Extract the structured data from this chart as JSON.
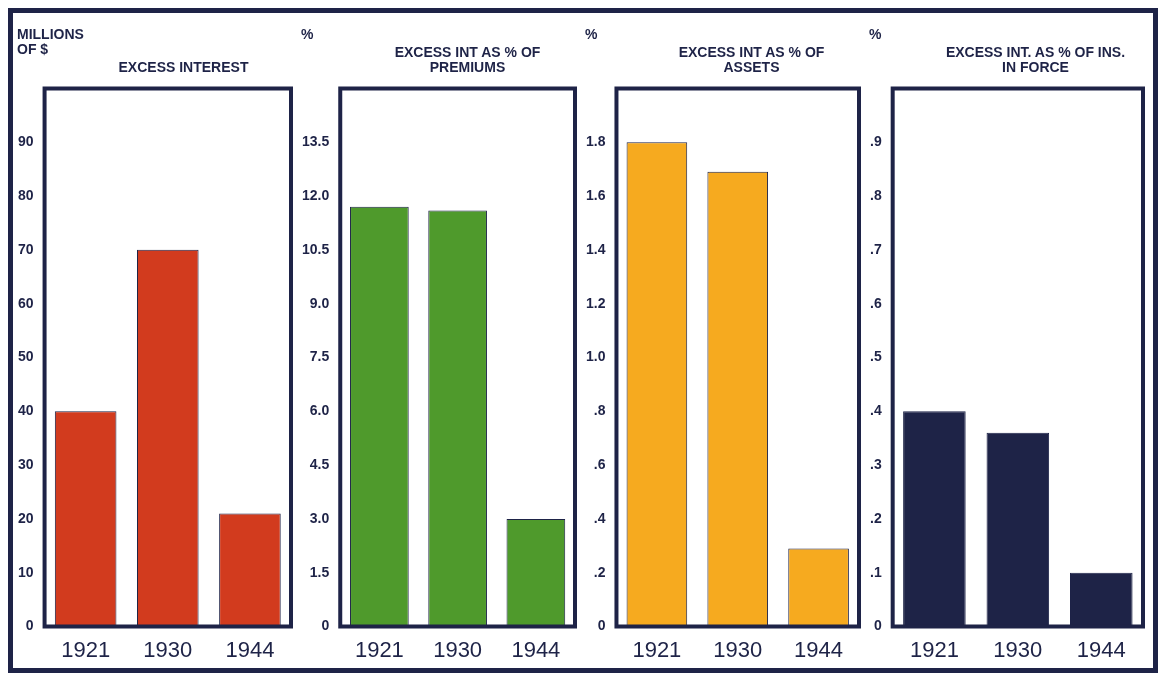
{
  "chart_data": [
    {
      "type": "bar",
      "title": "EXCESS INTEREST",
      "ylabel": "MILLIONS OF $",
      "categories": [
        "1921",
        "1930",
        "1944"
      ],
      "values": [
        40,
        70,
        21
      ],
      "color": "#d23b1e",
      "ylim": [
        0,
        100
      ],
      "yticks": [
        0,
        10,
        20,
        30,
        40,
        50,
        60,
        70,
        80,
        90
      ]
    },
    {
      "type": "bar",
      "title": "EXCESS INT AS % OF PREMIUMS",
      "ylabel": "%",
      "categories": [
        "1921",
        "1930",
        "1944"
      ],
      "values": [
        11.7,
        11.6,
        3.0
      ],
      "color": "#4f9a2c",
      "ylim": [
        0,
        15
      ],
      "yticks": [
        0,
        1.5,
        {
          "value": 3,
          "label": "3.0"
        },
        4.5,
        {
          "value": 6,
          "label": "6.0"
        },
        7.5,
        {
          "value": 9,
          "label": "9.0"
        },
        10.5,
        {
          "value": 12,
          "label": "12.0"
        },
        13.5
      ]
    },
    {
      "type": "bar",
      "title": "EXCESS INT AS % OF ASSETS",
      "ylabel": "%",
      "categories": [
        "1921",
        "1930",
        "1944"
      ],
      "values": [
        1.8,
        1.69,
        0.29
      ],
      "color": "#f6aa1f",
      "ylim": [
        0,
        2.0
      ],
      "yticks": [
        0,
        {
          "value": 0.2,
          "label": ".2"
        },
        {
          "value": 0.4,
          "label": ".4"
        },
        {
          "value": 0.6,
          "label": ".6"
        },
        {
          "value": 0.8,
          "label": ".8"
        },
        {
          "value": 1,
          "label": "1.0"
        },
        1.2,
        1.4,
        1.6,
        1.8
      ]
    },
    {
      "type": "bar",
      "title": "EXCESS INT. AS % OF INS. IN FORCE",
      "ylabel": "%",
      "categories": [
        "1921",
        "1930",
        "1944"
      ],
      "values": [
        0.4,
        0.36,
        0.1
      ],
      "color": "#1e2347",
      "ylim": [
        0,
        1.0
      ],
      "yticks": [
        0,
        {
          "value": 0.1,
          "label": ".1"
        },
        {
          "value": 0.2,
          "label": ".2"
        },
        {
          "value": 0.3,
          "label": ".3"
        },
        {
          "value": 0.4,
          "label": ".4"
        },
        {
          "value": 0.5,
          "label": ".5"
        },
        {
          "value": 0.6,
          "label": ".6"
        },
        {
          "value": 0.7,
          "label": ".7"
        },
        {
          "value": 0.8,
          "label": ".8"
        },
        {
          "value": 0.9,
          "label": ".9"
        }
      ]
    }
  ]
}
